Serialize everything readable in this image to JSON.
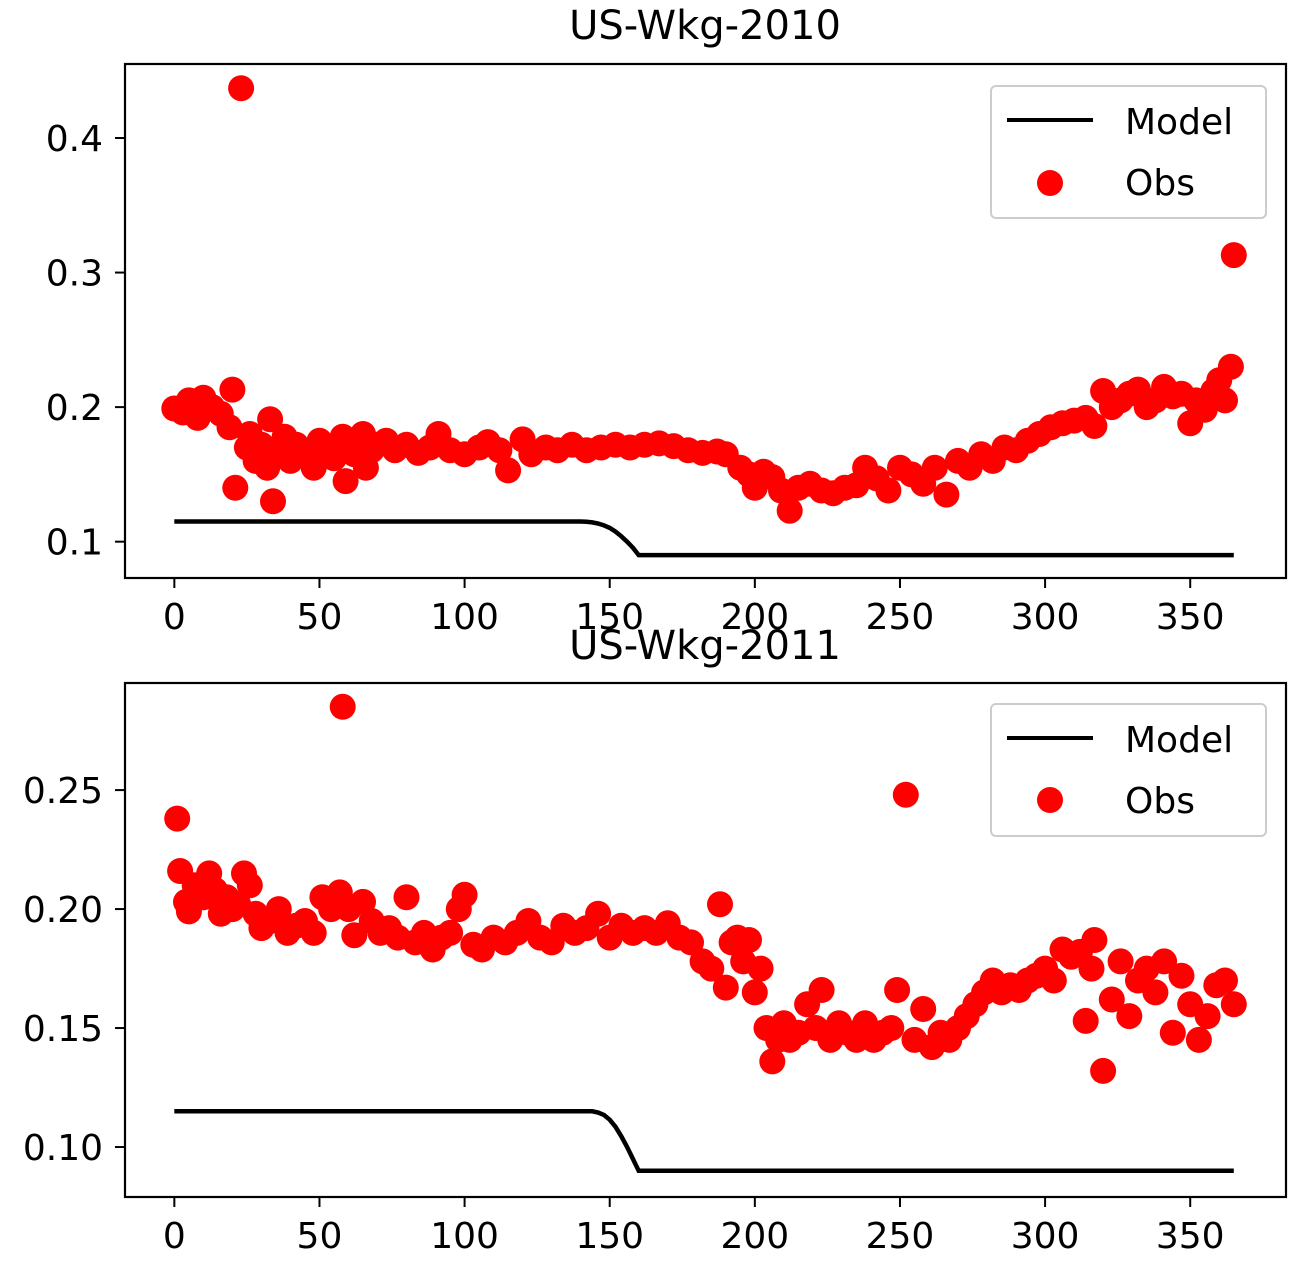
{
  "chart_data": [
    {
      "type": "line",
      "title": "US-Wkg-2010",
      "xlabel": "",
      "ylabel": "",
      "xlim": [
        -17,
        383
      ],
      "ylim": [
        0.073,
        0.455
      ],
      "xticks": [
        0,
        50,
        100,
        150,
        200,
        250,
        300,
        350
      ],
      "yticks": [
        0.1,
        0.2,
        0.3,
        0.4
      ],
      "ytick_labels": [
        "0.1",
        "0.2",
        "0.3",
        "0.4"
      ],
      "grid": false,
      "legend": {
        "position": "top-right",
        "entries": [
          "Model",
          "Obs"
        ]
      },
      "series": [
        {
          "name": "Model",
          "kind": "line",
          "color": "#000000",
          "x": [
            0,
            140,
            142,
            144,
            146,
            148,
            150,
            152,
            154,
            156,
            158,
            160,
            365
          ],
          "y": [
            0.115,
            0.115,
            0.1148,
            0.1143,
            0.1135,
            0.1122,
            0.1102,
            0.1075,
            0.104,
            0.1,
            0.0955,
            0.09,
            0.09
          ]
        },
        {
          "name": "Obs",
          "kind": "scatter",
          "color": "#ff0000",
          "x": [
            0,
            3,
            5,
            8,
            10,
            13,
            16,
            19,
            20,
            21,
            23,
            25,
            26,
            28,
            30,
            32,
            33,
            34,
            36,
            38,
            40,
            42,
            45,
            48,
            50,
            53,
            55,
            58,
            59,
            60,
            62,
            65,
            66,
            68,
            70,
            73,
            76,
            80,
            84,
            88,
            91,
            95,
            100,
            105,
            108,
            112,
            115,
            120,
            123,
            128,
            132,
            137,
            142,
            147,
            152,
            157,
            162,
            167,
            172,
            177,
            182,
            187,
            190,
            195,
            198,
            200,
            203,
            206,
            209,
            212,
            215,
            219,
            223,
            227,
            231,
            235,
            238,
            242,
            246,
            250,
            254,
            258,
            262,
            266,
            270,
            274,
            278,
            282,
            286,
            290,
            294,
            298,
            302,
            306,
            310,
            314,
            317,
            320,
            323,
            326,
            329,
            332,
            335,
            338,
            341,
            344,
            347,
            350,
            352,
            355,
            358,
            360,
            362,
            364,
            365
          ],
          "y": [
            0.199,
            0.196,
            0.205,
            0.192,
            0.207,
            0.2,
            0.195,
            0.185,
            0.213,
            0.14,
            0.437,
            0.17,
            0.18,
            0.16,
            0.172,
            0.155,
            0.191,
            0.13,
            0.165,
            0.178,
            0.16,
            0.172,
            0.166,
            0.155,
            0.175,
            0.168,
            0.162,
            0.178,
            0.145,
            0.17,
            0.165,
            0.18,
            0.155,
            0.168,
            0.172,
            0.175,
            0.168,
            0.172,
            0.166,
            0.17,
            0.18,
            0.168,
            0.165,
            0.17,
            0.174,
            0.168,
            0.153,
            0.176,
            0.165,
            0.17,
            0.168,
            0.172,
            0.168,
            0.17,
            0.172,
            0.17,
            0.172,
            0.173,
            0.171,
            0.168,
            0.166,
            0.167,
            0.165,
            0.155,
            0.15,
            0.14,
            0.152,
            0.148,
            0.138,
            0.123,
            0.14,
            0.143,
            0.138,
            0.136,
            0.14,
            0.142,
            0.155,
            0.147,
            0.138,
            0.155,
            0.15,
            0.143,
            0.155,
            0.135,
            0.16,
            0.155,
            0.165,
            0.16,
            0.17,
            0.168,
            0.175,
            0.18,
            0.185,
            0.188,
            0.19,
            0.192,
            0.186,
            0.212,
            0.2,
            0.205,
            0.21,
            0.213,
            0.2,
            0.205,
            0.215,
            0.208,
            0.21,
            0.188,
            0.205,
            0.198,
            0.212,
            0.22,
            0.205,
            0.23,
            0.313
          ]
        }
      ]
    },
    {
      "type": "line",
      "title": "US-Wkg-2011",
      "xlabel": "",
      "ylabel": "",
      "xlim": [
        -17,
        383
      ],
      "ylim": [
        0.079,
        0.295
      ],
      "xticks": [
        0,
        50,
        100,
        150,
        200,
        250,
        300,
        350
      ],
      "yticks": [
        0.1,
        0.15,
        0.2,
        0.25
      ],
      "ytick_labels": [
        "0.10",
        "0.15",
        "0.20",
        "0.25"
      ],
      "grid": false,
      "legend": {
        "position": "top-right",
        "entries": [
          "Model",
          "Obs"
        ]
      },
      "series": [
        {
          "name": "Model",
          "kind": "line",
          "color": "#000000",
          "x": [
            0,
            144,
            146,
            148,
            150,
            152,
            154,
            156,
            158,
            160,
            365
          ],
          "y": [
            0.115,
            0.115,
            0.1145,
            0.1135,
            0.1115,
            0.1085,
            0.1045,
            0.1,
            0.095,
            0.09,
            0.09
          ]
        },
        {
          "name": "Obs",
          "kind": "scatter",
          "color": "#ff0000",
          "x": [
            1,
            2,
            4,
            5,
            7,
            10,
            12,
            14,
            16,
            18,
            20,
            22,
            24,
            26,
            28,
            30,
            33,
            36,
            39,
            42,
            45,
            48,
            51,
            54,
            57,
            58,
            60,
            62,
            65,
            68,
            71,
            74,
            77,
            80,
            83,
            86,
            89,
            92,
            95,
            98,
            100,
            103,
            106,
            110,
            114,
            118,
            122,
            126,
            130,
            134,
            138,
            142,
            146,
            150,
            154,
            158,
            162,
            166,
            170,
            174,
            178,
            182,
            185,
            188,
            190,
            192,
            194,
            196,
            198,
            200,
            202,
            204,
            206,
            208,
            210,
            212,
            215,
            218,
            221,
            223,
            226,
            229,
            232,
            235,
            238,
            241,
            244,
            247,
            249,
            252,
            255,
            258,
            261,
            264,
            267,
            270,
            273,
            276,
            279,
            282,
            285,
            288,
            291,
            294,
            297,
            300,
            303,
            306,
            309,
            312,
            314,
            316,
            317,
            320,
            323,
            326,
            329,
            332,
            335,
            338,
            341,
            344,
            347,
            350,
            353,
            356,
            359,
            362,
            365
          ],
          "y": [
            0.238,
            0.216,
            0.203,
            0.199,
            0.21,
            0.205,
            0.215,
            0.208,
            0.198,
            0.205,
            0.2,
            0.202,
            0.215,
            0.21,
            0.198,
            0.192,
            0.195,
            0.2,
            0.19,
            0.193,
            0.195,
            0.19,
            0.205,
            0.2,
            0.207,
            0.285,
            0.2,
            0.189,
            0.203,
            0.195,
            0.19,
            0.192,
            0.188,
            0.205,
            0.186,
            0.19,
            0.183,
            0.188,
            0.19,
            0.2,
            0.206,
            0.185,
            0.183,
            0.188,
            0.186,
            0.19,
            0.195,
            0.188,
            0.186,
            0.193,
            0.19,
            0.192,
            0.198,
            0.188,
            0.193,
            0.19,
            0.192,
            0.19,
            0.194,
            0.188,
            0.186,
            0.178,
            0.175,
            0.202,
            0.167,
            0.186,
            0.188,
            0.178,
            0.187,
            0.165,
            0.175,
            0.15,
            0.136,
            0.145,
            0.152,
            0.145,
            0.148,
            0.16,
            0.15,
            0.166,
            0.145,
            0.152,
            0.148,
            0.145,
            0.152,
            0.145,
            0.148,
            0.15,
            0.166,
            0.248,
            0.145,
            0.158,
            0.142,
            0.148,
            0.145,
            0.15,
            0.155,
            0.16,
            0.165,
            0.17,
            0.165,
            0.168,
            0.166,
            0.17,
            0.172,
            0.175,
            0.17,
            0.183,
            0.18,
            0.182,
            0.153,
            0.175,
            0.187,
            0.132,
            0.162,
            0.178,
            0.155,
            0.17,
            0.175,
            0.165,
            0.178,
            0.148,
            0.172,
            0.16,
            0.145,
            0.155,
            0.168,
            0.17,
            0.16
          ]
        }
      ]
    }
  ]
}
